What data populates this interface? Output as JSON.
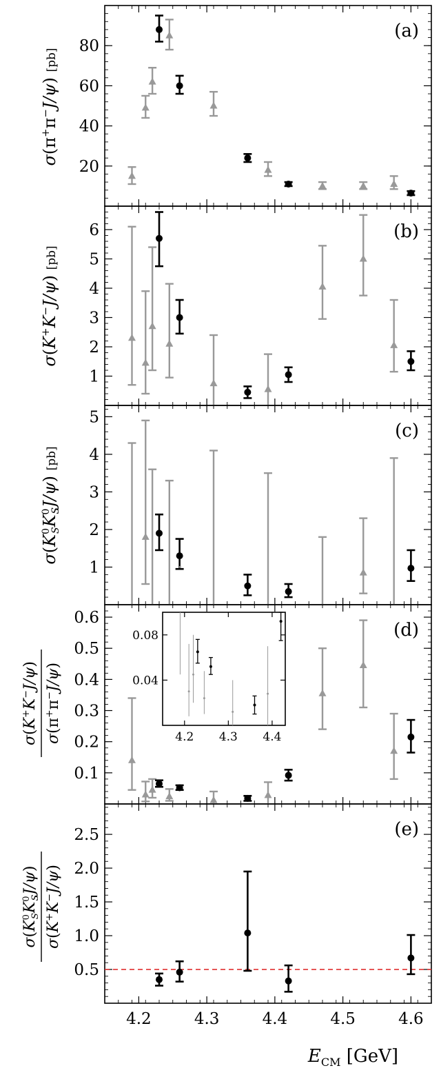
{
  "chart_data": {
    "type": "scatter",
    "xlabel": "E_CM [GeV]",
    "xlim": [
      4.15,
      4.63
    ],
    "xticks": [
      4.2,
      4.3,
      4.4,
      4.5,
      4.6
    ],
    "xtick_labels": [
      "4.2",
      "4.3",
      "4.4",
      "4.5",
      "4.6"
    ],
    "colors": {
      "black_series": "#000000",
      "gray_series": "#999999",
      "threshold_line": "#e03030"
    },
    "panels": [
      {
        "tag": "(a)",
        "ylabel": "σ(π⁺π⁻J/ψ) [pb]",
        "ylim": [
          0,
          100
        ],
        "yticks": [
          20,
          40,
          60,
          80
        ],
        "ytick_labels": [
          "20",
          "40",
          "60",
          "80"
        ],
        "black": [
          {
            "x": 4.23,
            "y": 88,
            "lo": 82,
            "hi": 95
          },
          {
            "x": 4.26,
            "y": 60,
            "lo": 56,
            "hi": 65
          },
          {
            "x": 4.36,
            "y": 24,
            "lo": 22,
            "hi": 26
          },
          {
            "x": 4.42,
            "y": 11,
            "lo": 10,
            "hi": 12
          },
          {
            "x": 4.6,
            "y": 6.5,
            "lo": 5.5,
            "hi": 7.5
          }
        ],
        "gray": [
          {
            "x": 4.19,
            "y": 15,
            "lo": 11,
            "hi": 19.5
          },
          {
            "x": 4.21,
            "y": 49,
            "lo": 44,
            "hi": 55
          },
          {
            "x": 4.22,
            "y": 62,
            "lo": 56,
            "hi": 69
          },
          {
            "x": 4.245,
            "y": 85,
            "lo": 78,
            "hi": 93
          },
          {
            "x": 4.31,
            "y": 50,
            "lo": 45,
            "hi": 57
          },
          {
            "x": 4.39,
            "y": 18,
            "lo": 15,
            "hi": 22
          },
          {
            "x": 4.47,
            "y": 10,
            "lo": 8.5,
            "hi": 12
          },
          {
            "x": 4.53,
            "y": 10,
            "lo": 8.5,
            "hi": 12
          },
          {
            "x": 4.575,
            "y": 11,
            "lo": 8.5,
            "hi": 15
          }
        ]
      },
      {
        "tag": "(b)",
        "ylabel": "σ(K⁺K⁻J/ψ) [pb]",
        "ylim": [
          0,
          6.8
        ],
        "yticks": [
          1,
          2,
          3,
          4,
          5,
          6
        ],
        "ytick_labels": [
          "1",
          "2",
          "3",
          "4",
          "5",
          "6"
        ],
        "black": [
          {
            "x": 4.23,
            "y": 5.7,
            "lo": 4.75,
            "hi": 6.6
          },
          {
            "x": 4.26,
            "y": 3.0,
            "lo": 2.45,
            "hi": 3.6
          },
          {
            "x": 4.36,
            "y": 0.45,
            "lo": 0.25,
            "hi": 0.65
          },
          {
            "x": 4.42,
            "y": 1.05,
            "lo": 0.8,
            "hi": 1.3
          },
          {
            "x": 4.6,
            "y": 1.5,
            "lo": 1.2,
            "hi": 1.85
          }
        ],
        "gray": [
          {
            "x": 4.19,
            "y": 2.3,
            "lo": 0.7,
            "hi": 6.1
          },
          {
            "x": 4.21,
            "y": 1.45,
            "lo": 0.4,
            "hi": 3.9
          },
          {
            "x": 4.22,
            "y": 2.7,
            "lo": 1.2,
            "hi": 5.4
          },
          {
            "x": 4.245,
            "y": 2.1,
            "lo": 0.95,
            "hi": 4.15
          },
          {
            "x": 4.31,
            "y": 0.75,
            "lo": 0.0,
            "hi": 2.4
          },
          {
            "x": 4.39,
            "y": 0.55,
            "lo": 0.0,
            "hi": 1.75
          },
          {
            "x": 4.47,
            "y": 4.05,
            "lo": 2.95,
            "hi": 5.45
          },
          {
            "x": 4.53,
            "y": 5.0,
            "lo": 3.75,
            "hi": 6.5
          },
          {
            "x": 4.575,
            "y": 2.05,
            "lo": 1.15,
            "hi": 3.6
          }
        ]
      },
      {
        "tag": "(c)",
        "ylabel": "σ(K⁰_S K⁰_S J/ψ) [pb]",
        "ylim": [
          0,
          5.3
        ],
        "yticks": [
          1,
          2,
          3,
          4,
          5
        ],
        "ytick_labels": [
          "1",
          "2",
          "3",
          "4",
          "5"
        ],
        "black": [
          {
            "x": 4.23,
            "y": 1.9,
            "lo": 1.45,
            "hi": 2.4
          },
          {
            "x": 4.26,
            "y": 1.3,
            "lo": 0.95,
            "hi": 1.75
          },
          {
            "x": 4.36,
            "y": 0.5,
            "lo": 0.25,
            "hi": 0.8
          },
          {
            "x": 4.42,
            "y": 0.35,
            "lo": 0.2,
            "hi": 0.55
          },
          {
            "x": 4.6,
            "y": 0.97,
            "lo": 0.63,
            "hi": 1.45
          }
        ],
        "gray": [
          {
            "x": 4.19,
            "y": null,
            "lo": 0.0,
            "hi": 4.3
          },
          {
            "x": 4.21,
            "y": 1.8,
            "lo": 0.55,
            "hi": 4.9
          },
          {
            "x": 4.22,
            "y": null,
            "lo": 0.0,
            "hi": 3.6
          },
          {
            "x": 4.245,
            "y": null,
            "lo": 0.0,
            "hi": 3.3
          },
          {
            "x": 4.31,
            "y": null,
            "lo": 0.0,
            "hi": 4.1
          },
          {
            "x": 4.39,
            "y": null,
            "lo": 0.0,
            "hi": 3.5
          },
          {
            "x": 4.47,
            "y": null,
            "lo": 0.0,
            "hi": 1.8
          },
          {
            "x": 4.53,
            "y": 0.85,
            "lo": 0.3,
            "hi": 2.3
          },
          {
            "x": 4.575,
            "y": null,
            "lo": 0.0,
            "hi": 3.9
          }
        ]
      },
      {
        "tag": "(d)",
        "ylabel": "σ(K⁺K⁻J/ψ) / σ(π⁺π⁻J/ψ)",
        "ylim": [
          0,
          0.64
        ],
        "yticks": [
          0.1,
          0.2,
          0.3,
          0.4,
          0.5,
          0.6
        ],
        "ytick_labels": [
          "0.1",
          "0.2",
          "0.3",
          "0.4",
          "0.5",
          "0.6"
        ],
        "black": [
          {
            "x": 4.23,
            "y": 0.065,
            "lo": 0.055,
            "hi": 0.076
          },
          {
            "x": 4.26,
            "y": 0.052,
            "lo": 0.045,
            "hi": 0.06
          },
          {
            "x": 4.36,
            "y": 0.018,
            "lo": 0.01,
            "hi": 0.026
          },
          {
            "x": 4.42,
            "y": 0.092,
            "lo": 0.075,
            "hi": 0.11
          },
          {
            "x": 4.6,
            "y": 0.215,
            "lo": 0.165,
            "hi": 0.27
          }
        ],
        "gray": [
          {
            "x": 4.19,
            "y": 0.14,
            "lo": 0.045,
            "hi": 0.34
          },
          {
            "x": 4.21,
            "y": 0.03,
            "lo": 0.008,
            "hi": 0.072
          },
          {
            "x": 4.22,
            "y": 0.045,
            "lo": 0.02,
            "hi": 0.08
          },
          {
            "x": 4.245,
            "y": 0.024,
            "lo": 0.01,
            "hi": 0.048
          },
          {
            "x": 4.31,
            "y": 0.012,
            "lo": 0.0,
            "hi": 0.04
          },
          {
            "x": 4.39,
            "y": 0.028,
            "lo": 0.0,
            "hi": 0.07
          },
          {
            "x": 4.47,
            "y": 0.355,
            "lo": 0.24,
            "hi": 0.5
          },
          {
            "x": 4.53,
            "y": 0.445,
            "lo": 0.31,
            "hi": 0.59
          },
          {
            "x": 4.575,
            "y": 0.17,
            "lo": 0.08,
            "hi": 0.29
          }
        ],
        "inset": {
          "xlim": [
            4.15,
            4.43
          ],
          "ylim": [
            0.0,
            0.1
          ],
          "xticks": [
            4.2,
            4.3,
            4.4
          ],
          "xtick_labels": [
            "4.2",
            "4.3",
            "4.4"
          ],
          "yticks": [
            0.04,
            0.08
          ],
          "ytick_labels": [
            "0.04",
            "0.08"
          ]
        }
      },
      {
        "tag": "(e)",
        "ylabel": "σ(K⁰_S K⁰_S J/ψ) / σ(K⁺K⁻J/ψ)",
        "ylim": [
          0,
          2.95
        ],
        "yticks": [
          0.5,
          1.0,
          1.5,
          2.0,
          2.5
        ],
        "ytick_labels": [
          "0.5",
          "1.0",
          "1.5",
          "2.0",
          "2.5"
        ],
        "reference_line": 0.5,
        "black": [
          {
            "x": 4.23,
            "y": 0.35,
            "lo": 0.26,
            "hi": 0.44
          },
          {
            "x": 4.26,
            "y": 0.46,
            "lo": 0.32,
            "hi": 0.62
          },
          {
            "x": 4.36,
            "y": 1.04,
            "lo": 0.48,
            "hi": 1.95
          },
          {
            "x": 4.42,
            "y": 0.33,
            "lo": 0.17,
            "hi": 0.56
          },
          {
            "x": 4.6,
            "y": 0.67,
            "lo": 0.43,
            "hi": 1.01
          }
        ],
        "gray": []
      }
    ]
  }
}
